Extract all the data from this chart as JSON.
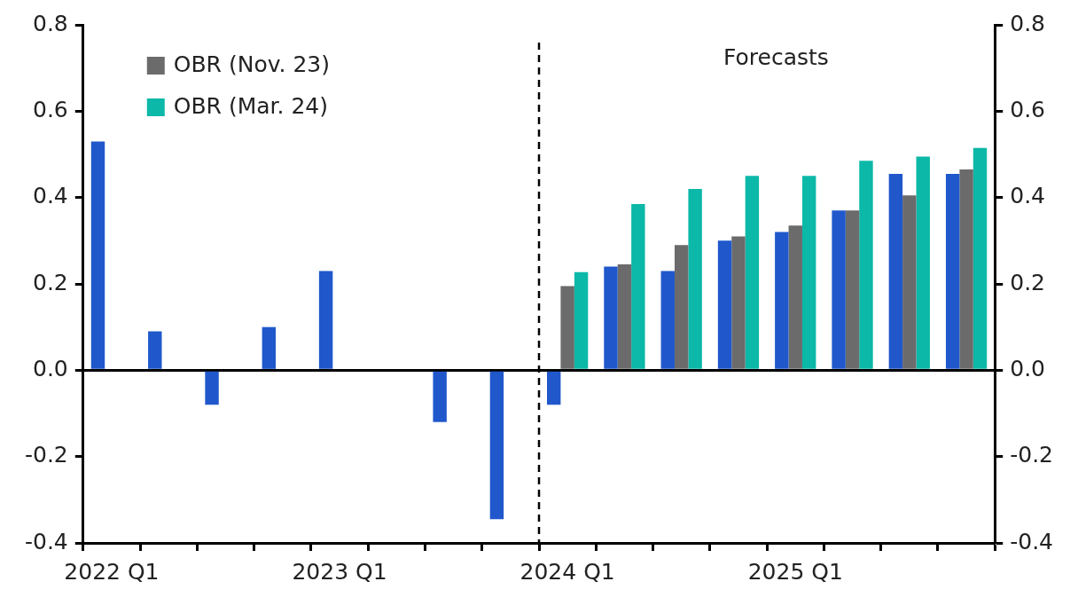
{
  "chart_data": {
    "type": "bar",
    "categories": [
      "2022 Q1",
      null,
      null,
      null,
      "2023 Q1",
      null,
      null,
      null,
      "2024 Q1",
      null,
      null,
      null,
      "2025 Q1",
      null,
      null,
      null
    ],
    "series": [
      {
        "color": "#2058cc",
        "values": [
          0.53,
          0.09,
          -0.08,
          0.1,
          0.23,
          0,
          -0.12,
          -0.345,
          -0.08,
          0.24,
          0.23,
          0.3,
          0.32,
          0.37,
          0.455,
          0.455
        ]
      },
      {
        "name": "OBR (Nov. 23)",
        "color": "#6b6b6b",
        "values": [
          null,
          null,
          null,
          null,
          null,
          null,
          null,
          null,
          0.195,
          0.245,
          0.29,
          0.31,
          0.335,
          0.37,
          0.405,
          0.465
        ]
      },
      {
        "name": "OBR (Mar. 24)",
        "color": "#0cb8a8",
        "values": [
          null,
          null,
          null,
          null,
          null,
          null,
          null,
          null,
          0.227,
          0.385,
          0.42,
          0.45,
          0.45,
          0.485,
          0.495,
          0.515
        ]
      }
    ],
    "ylim": [
      -0.4,
      0.8
    ],
    "yticks": [
      -0.4,
      -0.2,
      {
        "value": 0,
        "label": "0.0"
      },
      0.2,
      0.4,
      0.6,
      0.8
    ],
    "y2lim": [
      -0.4,
      0.8
    ],
    "y2ticks": [
      -0.4,
      -0.2,
      {
        "value": 0,
        "label": "0.0"
      },
      0.2,
      0.4,
      0.6,
      0.8
    ],
    "ref_lines": [
      {
        "axis": "x",
        "value": "2024 Q1",
        "line_style": "dashed",
        "color": "#000000"
      }
    ],
    "annotations": [
      "Forecasts"
    ],
    "grid": false,
    "legend": "top left"
  }
}
